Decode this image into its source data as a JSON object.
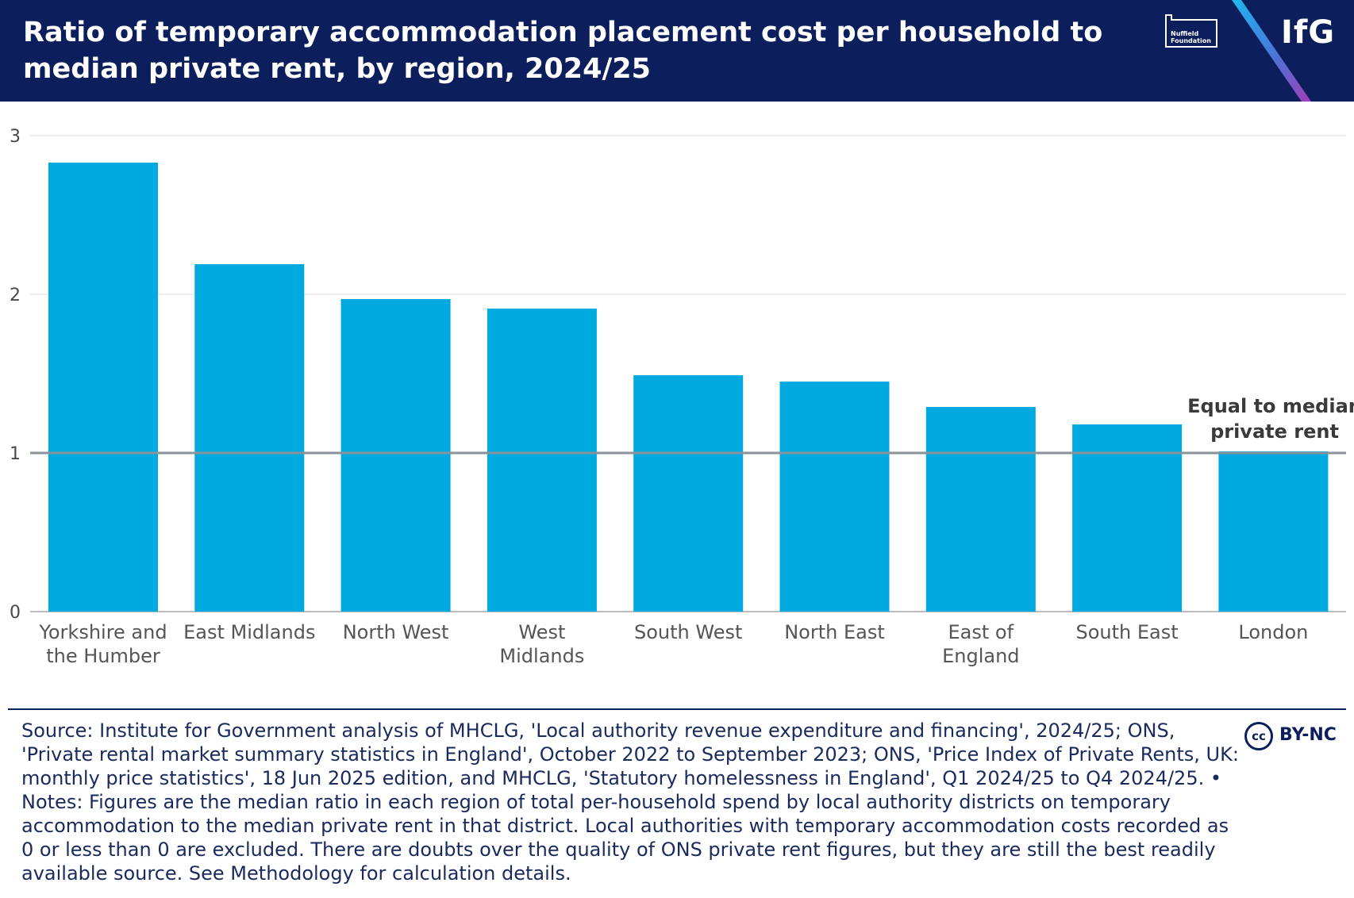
{
  "header": {
    "title": "Ratio of temporary accommodation placement cost per household to median private rent, by region, 2024/25",
    "partner_logo": "Nuffield Foundation",
    "org_logo": "IfG"
  },
  "chart_data": {
    "type": "bar",
    "title": "Ratio of temporary accommodation placement cost per household to median private rent, by region, 2024/25",
    "xlabel": "",
    "ylabel": "",
    "ylim": [
      0,
      3
    ],
    "yticks": [
      "0",
      "1",
      "2",
      "3"
    ],
    "grid": true,
    "bar_color": "#00a9e0",
    "categories": [
      [
        "Yorkshire and",
        "the Humber"
      ],
      [
        "East Midlands"
      ],
      [
        "North West"
      ],
      [
        "West",
        "Midlands"
      ],
      [
        "South West"
      ],
      [
        "North East"
      ],
      [
        "East of",
        "England"
      ],
      [
        "South East"
      ],
      [
        "London"
      ]
    ],
    "values": [
      2.83,
      2.19,
      1.97,
      1.91,
      1.49,
      1.45,
      1.29,
      1.18,
      1.01
    ],
    "reference_line": {
      "value": 1,
      "label": [
        "Equal to median",
        "private rent"
      ],
      "color": "#8a9399"
    }
  },
  "footer": {
    "source": "Source: Institute for Government analysis of MHCLG, 'Local authority revenue expenditure and financing', 2024/25; ONS, 'Private rental market summary statistics in England', October 2022 to September 2023; ONS, 'Price Index of Private Rents, UK: monthly price statistics', 18 Jun 2025 edition, and MHCLG, 'Statutory homelessness in England', Q1 2024/25 to Q4 2024/25. • Notes: Figures are the median ratio in each region of total per-household spend by local authority districts on temporary accommodation to the median private rent in that district. Local authorities with temporary accommodation costs recorded as 0 or less than 0 are excluded. There are doubts over the quality of ONS private rent figures, but they are still the best readily available source. See Methodology for calculation details.",
    "license_mark": "cc",
    "license": "BY-NC"
  },
  "colors": {
    "header_bg": "#0c1f5c",
    "bar": "#00a9e0",
    "gridline": "#e6e6e6"
  }
}
